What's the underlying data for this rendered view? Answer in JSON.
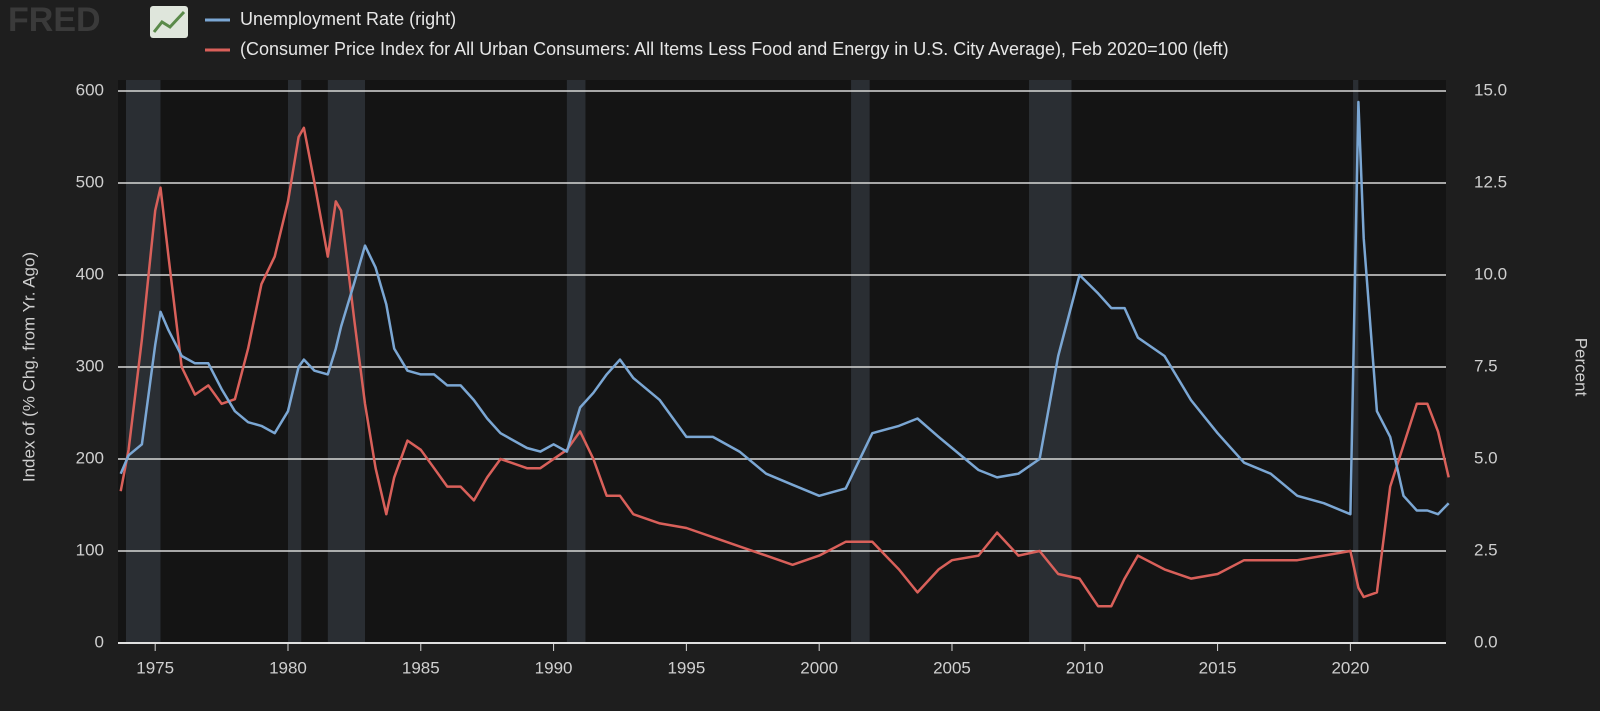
{
  "logo": "FRED",
  "chart_data": {
    "type": "line",
    "ylabel": "Index of (% Chg. from Yr. Ago)",
    "y2label": "Percent",
    "x": [
      1973.7,
      1974.0,
      1974.5,
      1975.0,
      1975.2,
      1975.5,
      1976.0,
      1976.5,
      1977.0,
      1977.5,
      1978.0,
      1978.5,
      1979.0,
      1979.5,
      1980.0,
      1980.4,
      1980.6,
      1981.0,
      1981.5,
      1981.8,
      1982.0,
      1982.5,
      1982.9,
      1983.3,
      1983.7,
      1984.0,
      1984.5,
      1985.0,
      1985.5,
      1986.0,
      1986.5,
      1987.0,
      1987.5,
      1988.0,
      1989.0,
      1989.5,
      1990.0,
      1990.5,
      1991.0,
      1991.5,
      1992.0,
      1992.5,
      1993.0,
      1994.0,
      1995.0,
      1996.0,
      1997.0,
      1998.0,
      1999.0,
      2000.0,
      2001.0,
      2002.0,
      2003.0,
      2003.7,
      2004.5,
      2005.0,
      2006.0,
      2006.7,
      2007.5,
      2008.3,
      2009.0,
      2009.8,
      2010.5,
      2011.0,
      2011.5,
      2012.0,
      2013.0,
      2014.0,
      2015.0,
      2016.0,
      2017.0,
      2018.0,
      2019.0,
      2020.0,
      2020.3,
      2020.5,
      2021.0,
      2021.5,
      2022.0,
      2022.5,
      2022.9,
      2023.3,
      2023.7
    ],
    "series": [
      {
        "name": "Unemployment Rate (right)",
        "color": "#7ba7d4",
        "axis": "y2",
        "values": [
          4.6,
          5.1,
          5.4,
          8.1,
          9.0,
          8.5,
          7.8,
          7.6,
          7.6,
          6.9,
          6.3,
          6.0,
          5.9,
          5.7,
          6.3,
          7.5,
          7.7,
          7.4,
          7.3,
          8.0,
          8.6,
          9.8,
          10.8,
          10.2,
          9.2,
          8.0,
          7.4,
          7.3,
          7.3,
          7.0,
          7.0,
          6.6,
          6.1,
          5.7,
          5.3,
          5.2,
          5.4,
          5.2,
          6.4,
          6.8,
          7.3,
          7.7,
          7.2,
          6.6,
          5.6,
          5.6,
          5.2,
          4.6,
          4.3,
          4.0,
          4.2,
          5.7,
          5.9,
          6.1,
          5.6,
          5.3,
          4.7,
          4.5,
          4.6,
          5.0,
          7.8,
          10.0,
          9.5,
          9.1,
          9.1,
          8.3,
          7.8,
          6.6,
          5.7,
          4.9,
          4.6,
          4.0,
          3.8,
          3.5,
          14.7,
          11.0,
          6.3,
          5.6,
          4.0,
          3.6,
          3.6,
          3.5,
          3.8
        ]
      },
      {
        "name": "(Consumer Price Index for All Urban Consumers: All Items Less Food and Energy in U.S. City Average), Feb 2020=100 (left)",
        "color": "#d9605a",
        "values": [
          165,
          210,
          330,
          470,
          495,
          420,
          300,
          270,
          280,
          260,
          265,
          320,
          390,
          420,
          480,
          550,
          560,
          500,
          420,
          480,
          470,
          350,
          260,
          190,
          140,
          180,
          220,
          210,
          190,
          170,
          170,
          155,
          180,
          200,
          190,
          190,
          200,
          210,
          230,
          200,
          160,
          160,
          140,
          130,
          125,
          115,
          105,
          95,
          85,
          95,
          110,
          110,
          80,
          55,
          80,
          90,
          95,
          120,
          95,
          100,
          75,
          70,
          40,
          40,
          70,
          95,
          80,
          70,
          75,
          90,
          90,
          90,
          95,
          100,
          60,
          50,
          55,
          170,
          215,
          260,
          260,
          230,
          180
        ]
      }
    ],
    "recessions": [
      [
        1973.9,
        1975.2
      ],
      [
        1980.0,
        1980.5
      ],
      [
        1981.5,
        1982.9
      ],
      [
        1990.5,
        1991.2
      ],
      [
        2001.2,
        2001.9
      ],
      [
        2007.9,
        2009.5
      ],
      [
        2020.1,
        2020.3
      ]
    ],
    "recession_color": "#2a2e33",
    "xlim": [
      1973.6,
      2023.6
    ],
    "xticks": [
      1975,
      1980,
      1985,
      1990,
      1995,
      2000,
      2005,
      2010,
      2015,
      2020
    ],
    "ylim": [
      0,
      600
    ],
    "yticks": [
      0,
      100,
      200,
      300,
      400,
      500,
      600
    ],
    "y2lim": [
      0,
      15
    ],
    "y2ticks": [
      {
        "value": 0,
        "label": "0.0"
      },
      {
        "value": 2.5,
        "label": "2.5"
      },
      {
        "value": 5,
        "label": "5.0"
      },
      {
        "value": 7.5,
        "label": "7.5"
      },
      {
        "value": 10,
        "label": "10.0"
      },
      {
        "value": 12.5,
        "label": "12.5"
      },
      {
        "value": 15,
        "label": "15.0"
      }
    ],
    "grid": true
  }
}
